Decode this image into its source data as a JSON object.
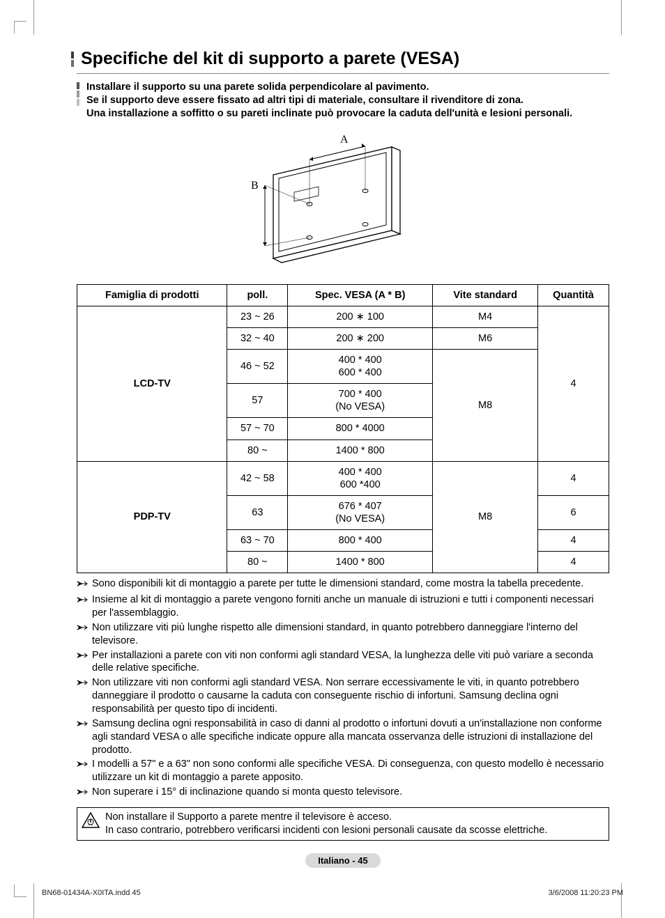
{
  "title": "Specifiche del kit di supporto a parete (VESA)",
  "intro": "Installare il supporto su una parete solida perpendicolare al pavimento.\nSe il supporto deve essere fissato ad altri tipi di materiale, consultare il rivenditore di zona.\nUna installazione a soffitto o su pareti inclinate può provocare la caduta dell'unità e lesioni personali.",
  "diagram": {
    "label_a": "A",
    "label_b": "B"
  },
  "table": {
    "headers": [
      "Famiglia di prodotti",
      "poll.",
      "Spec. VESA (A * B)",
      "Vite standard",
      "Quantità"
    ],
    "groups": [
      {
        "family": "LCD-TV",
        "screw_groups": [
          {
            "screw": "M4",
            "rows": [
              {
                "poll": "23 ~ 26",
                "spec": "200 ∗ 100"
              }
            ]
          },
          {
            "screw": "M6",
            "rows": [
              {
                "poll": "32 ~ 40",
                "spec": "200 ∗ 200"
              }
            ]
          },
          {
            "screw": "M8",
            "rows": [
              {
                "poll": "46 ~ 52",
                "spec": "400 * 400\n600 * 400"
              },
              {
                "poll": "57",
                "spec": "700 * 400\n(No VESA)"
              },
              {
                "poll": "57 ~ 70",
                "spec": "800 * 4000"
              },
              {
                "poll": "80 ~",
                "spec": "1400 * 800"
              }
            ]
          }
        ],
        "qty_groups": [
          {
            "qty": "4",
            "span": 6
          }
        ]
      },
      {
        "family": "PDP-TV",
        "screw_groups": [
          {
            "screw": "M8",
            "rows": [
              {
                "poll": "42 ~ 58",
                "spec": "400 * 400\n600 *400",
                "qty": "4"
              },
              {
                "poll": "63",
                "spec": "676 * 407\n(No VESA)",
                "qty": "6"
              },
              {
                "poll": "63 ~ 70",
                "spec": "800 * 400",
                "qty": "4"
              },
              {
                "poll": "80 ~",
                "spec": "1400 * 800",
                "qty": "4"
              }
            ]
          }
        ]
      }
    ]
  },
  "notes": [
    "Sono disponibili kit di montaggio a parete per tutte le dimensioni standard, come mostra la tabella precedente.",
    "Insieme al kit di montaggio a parete vengono forniti anche un manuale di istruzioni e tutti i componenti necessari per l'assemblaggio.",
    "Non utilizzare viti più lunghe rispetto alle dimensioni standard, in quanto potrebbero danneggiare l'interno del televisore.",
    "Per installazioni a parete con viti non conformi agli standard VESA, la lunghezza delle viti può variare a seconda delle relative specifiche.",
    "Non utilizzare viti non conformi agli standard VESA. Non serrare eccessivamente le viti, in quanto potrebbero danneggiare il prodotto o causarne la caduta con conseguente rischio di infortuni. Samsung declina ogni responsabilità per questo tipo di incidenti.",
    "Samsung declina ogni responsabilità in caso di danni al prodotto o infortuni dovuti a un'installazione non conforme agli standard VESA o alle specifiche indicate oppure alla mancata osservanza delle istruzioni di installazione del prodotto.",
    "I modelli a 57\" e a 63\" non sono conformi alle specifiche VESA. Di conseguenza, con questo modello è necessario utilizzare un kit di montaggio a parete apposito.",
    "Non superare i 15° di inclinazione quando si monta questo televisore."
  ],
  "warning": "Non installare il Supporto a parete mentre il televisore è acceso.\nIn caso contrario, potrebbero verificarsi incidenti con lesioni personali causate da scosse elettriche.",
  "page_label": "Italiano - 45",
  "footer_left": "BN68-01434A-X0ITA.indd   45",
  "footer_right": "3/6/2008   11:20:23 PM"
}
